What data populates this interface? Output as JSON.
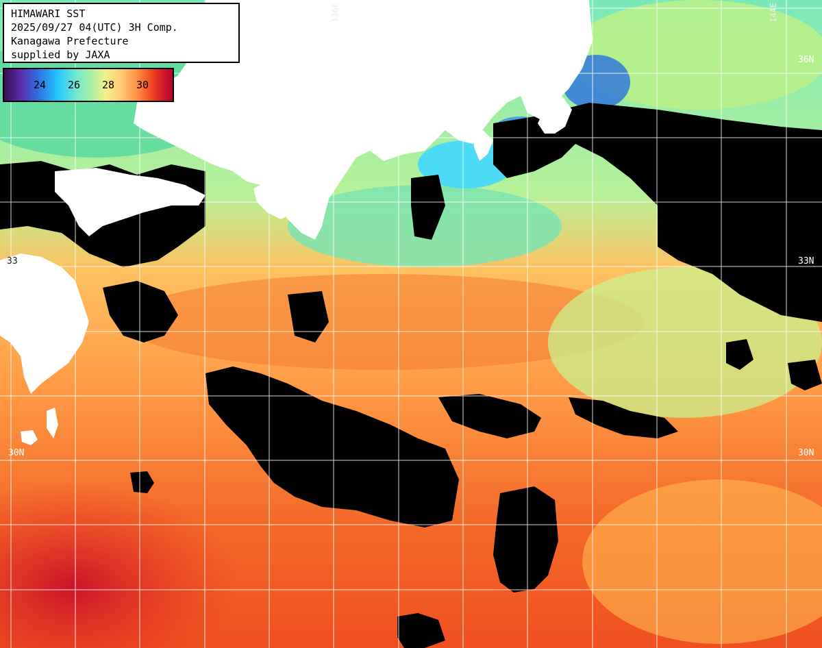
{
  "title": {
    "line1": "HIMAWARI SST",
    "line2": "2025/09/27 04(UTC) 3H Comp.",
    "line3": "Kanagawa Prefecture",
    "line4": "supplied by JAXA"
  },
  "legend": {
    "ticks": [
      "24",
      "26",
      "28",
      "30"
    ],
    "unit": "",
    "colors": [
      "#3a0f52",
      "#2f6de0",
      "#25c7ff",
      "#a8f0a0",
      "#f2f08a",
      "#ff9848",
      "#f0421e",
      "#b0082a"
    ]
  },
  "grid_labels": {
    "lat_33_left": "33",
    "lat_33_right": "33N",
    "lat_30_left": "30N",
    "lat_30_right": "30N",
    "lat_36_right": "36N",
    "lon_136": "136E",
    "lon_144": "144E"
  },
  "map_colors": {
    "land": "#ffffff",
    "cloud_nodata": "#000000",
    "warm": "#f05a28",
    "hot": "#d91a2a",
    "mild": "#ffb056",
    "cool": "#a6f0a0",
    "cold": "#4bd8ff"
  }
}
